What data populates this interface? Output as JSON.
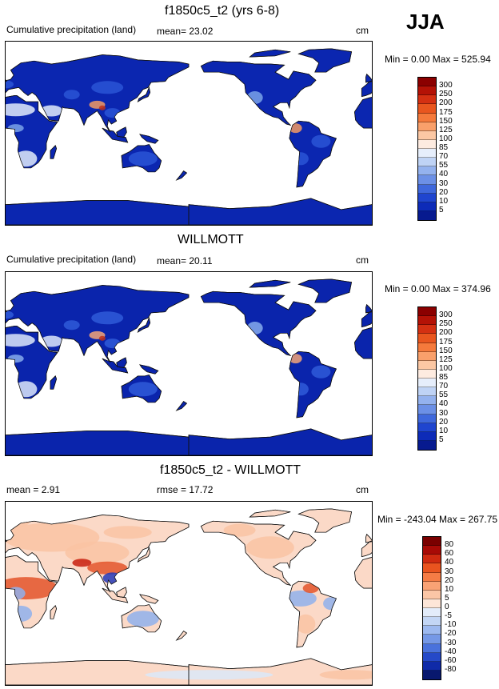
{
  "season": "JJA",
  "panels": [
    {
      "title": "f1850c5_t2 (yrs 6-8)",
      "left_label": "Cumulative precipitation (land)",
      "center_label": "mean=  23.02",
      "units": "cm",
      "minmax": "Min =   0.00 Max = 525.94",
      "colorbar": {
        "labels": [
          "300",
          "250",
          "200",
          "175",
          "150",
          "125",
          "100",
          "85",
          "70",
          "55",
          "40",
          "30",
          "20",
          "10",
          "5"
        ],
        "colors": [
          "#8b0000",
          "#b41206",
          "#d43012",
          "#e9561f",
          "#f57a3c",
          "#f9a06b",
          "#fcc8a4",
          "#fdebe0",
          "#e6eefb",
          "#bfd3f5",
          "#94b2ee",
          "#6c90e6",
          "#3f68dc",
          "#1f45cf",
          "#0d2bb8",
          "#071a8f"
        ]
      },
      "map": {
        "name": "model",
        "dry": "#e2ecfb",
        "mid": "#7aa3e9",
        "wet": "#f39a63",
        "base": "#0b26b0",
        "mid2": "#2a55d6"
      }
    },
    {
      "title": "WILLMOTT",
      "left_label": "Cumulative precipitation (land)",
      "center_label": "mean=  20.11",
      "units": "cm",
      "minmax": "Min =   0.00 Max = 374.96",
      "colorbar": {
        "labels": [
          "300",
          "250",
          "200",
          "175",
          "150",
          "125",
          "100",
          "85",
          "70",
          "55",
          "40",
          "30",
          "20",
          "10",
          "5"
        ],
        "colors": [
          "#8b0000",
          "#b41206",
          "#d43012",
          "#e9561f",
          "#f57a3c",
          "#f9a06b",
          "#fcc8a4",
          "#fdebe0",
          "#e6eefb",
          "#bfd3f5",
          "#94b2ee",
          "#6c90e6",
          "#3f68dc",
          "#1f45cf",
          "#0d2bb8",
          "#071a8f"
        ]
      },
      "map": {
        "name": "obs",
        "dry": "#dde8fa",
        "mid": "#86acec",
        "wet": "#f5a577",
        "base": "#0a24ac",
        "mid2": "#2f5bd8"
      }
    },
    {
      "title": "f1850c5_t2 - WILLMOTT",
      "left_label": "mean =   2.91",
      "center_label": "rmse =  17.72",
      "units": "cm",
      "minmax": "Min = -243.04 Max = 267.75",
      "colorbar": {
        "labels": [
          "80",
          "60",
          "40",
          "30",
          "20",
          "10",
          "5",
          "0",
          "-5",
          "-10",
          "-20",
          "-30",
          "-40",
          "-60",
          "-80"
        ],
        "colors": [
          "#7a0000",
          "#a80a06",
          "#cf2a10",
          "#e9541f",
          "#f57c45",
          "#f9a275",
          "#fbc6a6",
          "#fde6d8",
          "#e3ecfa",
          "#c3d6f5",
          "#9db9ef",
          "#7598e6",
          "#4a72dc",
          "#2549c8",
          "#0f2aa8",
          "#08186e"
        ]
      },
      "map": {
        "name": "diff",
        "dry": "#dbe7f8",
        "mid": "#f9c3a3",
        "wet": "#e3532a",
        "base": "#fbd9c7",
        "mid2": "#8fb0ec"
      }
    }
  ]
}
